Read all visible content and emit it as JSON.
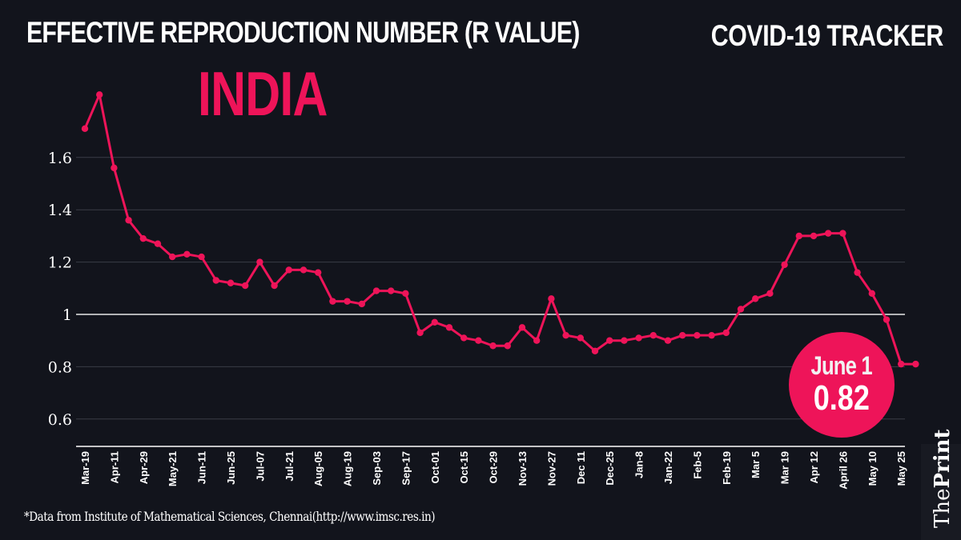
{
  "header": {
    "title": "EFFECTIVE REPRODUCTION NUMBER (R VALUE)",
    "country": "INDIA",
    "tracker": "COVID-19 TRACKER"
  },
  "footer": {
    "source": "*Data from Institute of Mathematical Sciences, Chennai(http://www.imsc.res.in)"
  },
  "brand": {
    "prefix": "The",
    "name": "Print"
  },
  "badge": {
    "date": "June 1",
    "value": "0.82"
  },
  "colors": {
    "background": "#12141c",
    "accent": "#ee1459",
    "text": "#ffffff"
  },
  "chart_data": {
    "type": "line",
    "title": "EFFECTIVE REPRODUCTION NUMBER (R VALUE)",
    "subtitle": "INDIA",
    "xlabel": "",
    "ylabel": "",
    "ylim": [
      0.5,
      1.9
    ],
    "yticks": [
      0.6,
      0.8,
      1,
      1.2,
      1.4,
      1.6
    ],
    "ytick_labels": [
      "0.6",
      "0.8",
      "1",
      "1.2",
      "1.4",
      "1.6"
    ],
    "reference_line": 1,
    "grid": true,
    "xtick_labels": [
      "Mar-19",
      "Apr-11",
      "Apr-29",
      "May-21",
      "Jun-11",
      "Jun-25",
      "Jul-07",
      "Jul-21",
      "Aug-05",
      "Aug-19",
      "Sep-03",
      "Sep-17",
      "Oct-01",
      "Oct-15",
      "Oct-29",
      "Nov-13",
      "Nov-27",
      "Dec 11",
      "Dec-25",
      "Jan-8",
      "Jan-22",
      "Feb-5",
      "Feb-19",
      "Mar 5",
      "Mar 19",
      "Apr 12",
      "April 26",
      "May 10",
      "May 25"
    ],
    "series": [
      {
        "name": "R value",
        "values": [
          1.71,
          1.84,
          1.56,
          1.36,
          1.29,
          1.27,
          1.22,
          1.23,
          1.22,
          1.13,
          1.12,
          1.11,
          1.2,
          1.11,
          1.17,
          1.17,
          1.16,
          1.05,
          1.05,
          1.04,
          1.09,
          1.09,
          1.08,
          0.93,
          0.97,
          0.95,
          0.91,
          0.9,
          0.88,
          0.88,
          0.95,
          0.9,
          1.06,
          0.92,
          0.91,
          0.86,
          0.9,
          0.9,
          0.91,
          0.92,
          0.9,
          0.92,
          0.92,
          0.92,
          0.93,
          1.02,
          1.06,
          1.08,
          1.19,
          1.3,
          1.3,
          1.31,
          1.31,
          1.16,
          1.08,
          0.98,
          0.81,
          0.81
        ]
      }
    ],
    "annotation": {
      "label": "June 1",
      "value": 0.82
    }
  }
}
